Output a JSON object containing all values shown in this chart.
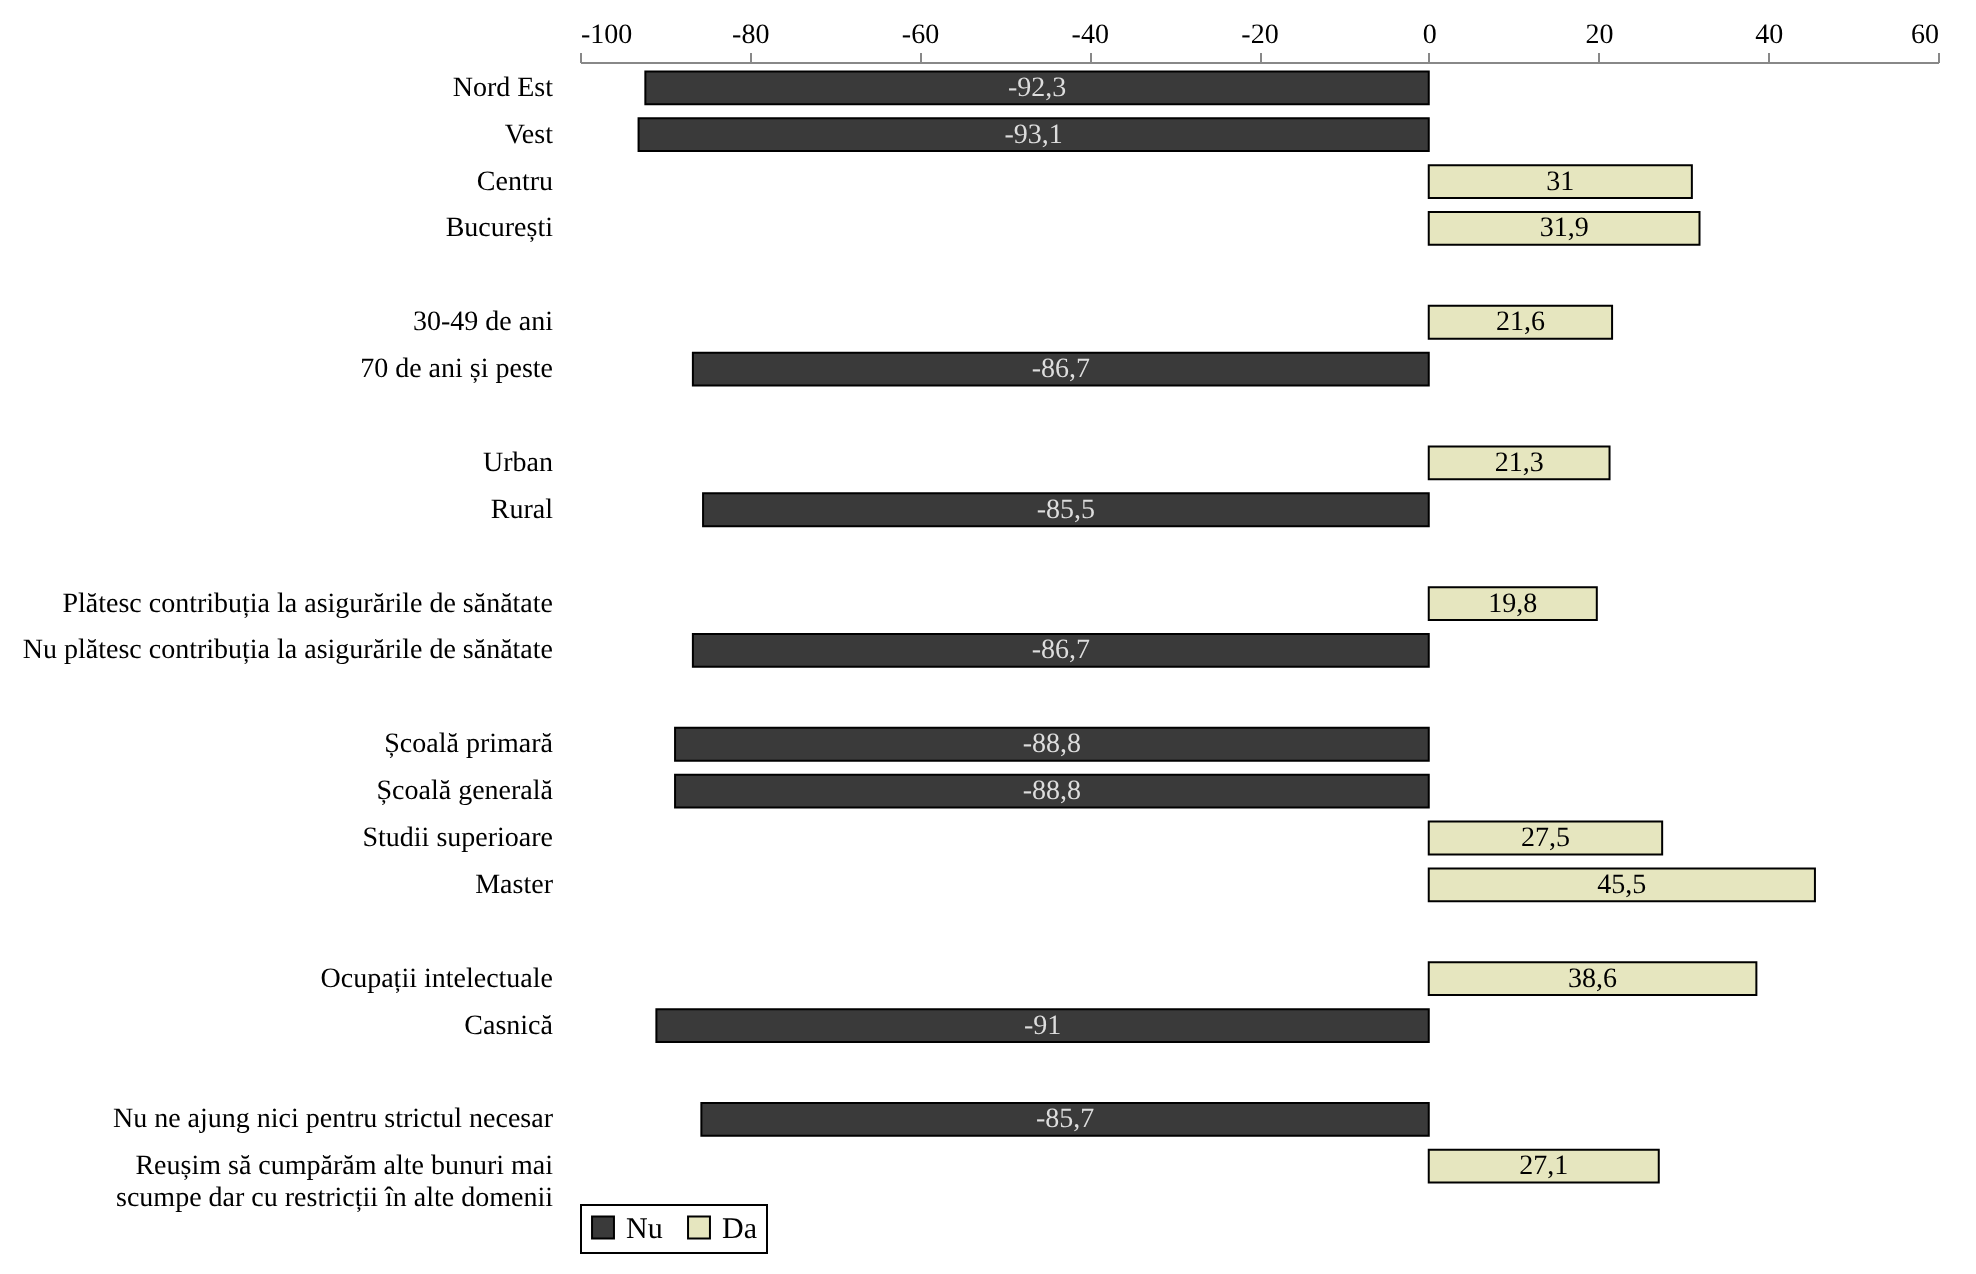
{
  "chart_data": {
    "type": "bar",
    "orientation": "horizontal",
    "categories": [
      "Nord Est",
      "Vest",
      "Centru",
      "București",
      null,
      "30-49 de ani",
      "70 de ani și peste",
      null,
      "Urban",
      "Rural",
      null,
      "Plătesc contribuția la asigurările de sănătate",
      "Nu plătesc contribuția la asigurările de sănătate",
      null,
      "Școală primară",
      "Școală generală",
      "Studii superioare",
      "Master",
      null,
      "Ocupații intelectuale",
      "Casnică",
      null,
      "Nu ne ajung nici pentru strictul necesar",
      "Reușim să cumpărăm alte bunuri mai\nscumpe dar cu restricții în alte domenii"
    ],
    "series": [
      {
        "name": "Nu",
        "color": "#3a3a3a",
        "values": [
          -92.3,
          -93.1,
          null,
          null,
          null,
          null,
          -86.7,
          null,
          null,
          -85.5,
          null,
          null,
          -86.7,
          null,
          -88.8,
          -88.8,
          null,
          null,
          null,
          null,
          -91,
          null,
          -85.7,
          null
        ],
        "value_labels": [
          "-92,3",
          "-93,1",
          null,
          null,
          null,
          null,
          "-86,7",
          null,
          null,
          "-85,5",
          null,
          null,
          "-86,7",
          null,
          "-88,8",
          "-88,8",
          null,
          null,
          null,
          null,
          "-91",
          null,
          "-85,7",
          null
        ]
      },
      {
        "name": "Da",
        "color": "#e6e6bf",
        "values": [
          null,
          null,
          31,
          31.9,
          null,
          21.6,
          null,
          null,
          21.3,
          null,
          null,
          19.8,
          null,
          null,
          null,
          null,
          27.5,
          45.5,
          null,
          38.6,
          null,
          null,
          null,
          27.1
        ],
        "value_labels": [
          null,
          null,
          "31",
          "31,9",
          null,
          "21,6",
          null,
          null,
          "21,3",
          null,
          null,
          "19,8",
          null,
          null,
          null,
          null,
          "27,5",
          "45,5",
          null,
          "38,6",
          null,
          null,
          null,
          "27,1"
        ]
      }
    ],
    "xlim": [
      -100,
      60
    ],
    "xticks": [
      -100,
      -80,
      -60,
      -40,
      -20,
      0,
      20,
      40,
      60
    ],
    "grid": false,
    "legend": "bottom"
  }
}
